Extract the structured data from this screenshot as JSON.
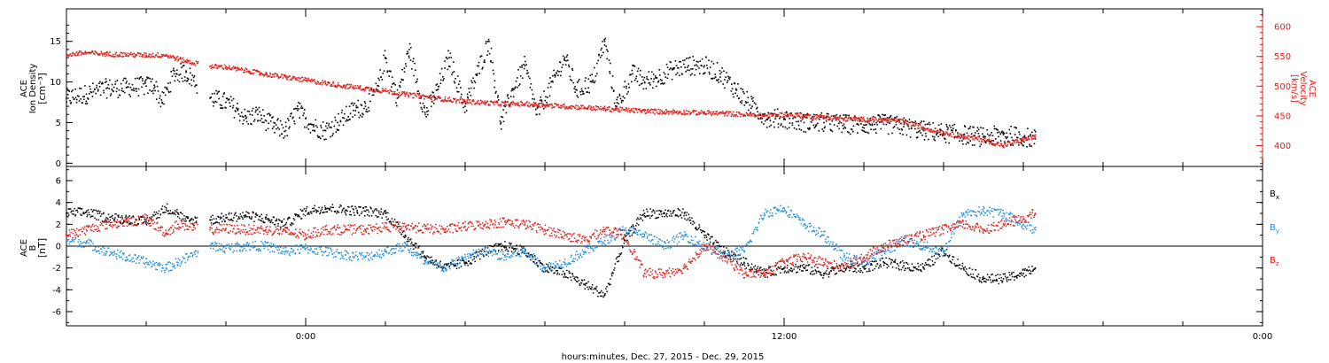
{
  "chart_data": [
    {
      "type": "scatter",
      "panel": "top",
      "ylabel_left": [
        "ACE",
        "Ion Density",
        "[cm⁻³]"
      ],
      "ylabel_right": [
        "ACE",
        "Velocity",
        "[km/s]"
      ],
      "ylim_left": [
        -0.4,
        19
      ],
      "yticks_left": [
        0,
        5,
        10,
        15
      ],
      "ylim_right": [
        365,
        630
      ],
      "yticks_right": [
        400,
        450,
        500,
        550,
        600
      ],
      "right_axis_color": "#e0201b",
      "series": [
        {
          "color": "#000000",
          "axis": "left",
          "x": [
            -6.0,
            -5.5,
            -5.0,
            -4.5,
            -4.0,
            -3.8,
            -3.6,
            -3.3,
            -3.0,
            -2.4,
            -2.0,
            -1.7,
            -1.5,
            -1.2,
            -0.8,
            -0.5,
            -0.2,
            0.2,
            0.5,
            0.8,
            1.2,
            1.5,
            1.8,
            2.0,
            2.3,
            2.6,
            3.0,
            3.3,
            3.6,
            4.0,
            4.3,
            4.6,
            4.9,
            5.2,
            5.5,
            5.8,
            6.2,
            6.5,
            6.8,
            7.2,
            7.5,
            7.8,
            8.2,
            8.5,
            8.8,
            9.2,
            9.6,
            10.0,
            10.4,
            10.8,
            11.2,
            11.6,
            12.0,
            12.5,
            13.0,
            13.5,
            14.0,
            14.5,
            15.0,
            15.5,
            16.0,
            16.5,
            17.0,
            17.5,
            18.0,
            18.3
          ],
          "y": [
            8,
            8.5,
            9.2,
            9.3,
            9.5,
            9.6,
            7.5,
            11,
            11.2,
            8,
            7.5,
            6.5,
            5.5,
            6,
            4.5,
            4,
            6.5,
            4.5,
            4,
            5,
            6.5,
            7,
            9,
            13,
            8,
            14,
            6,
            9,
            13,
            7,
            11,
            15,
            5,
            9,
            12,
            6,
            10,
            13,
            9,
            10,
            15,
            7,
            11,
            10,
            10.5,
            11.5,
            12,
            12,
            11,
            9,
            7,
            5.5,
            5.5,
            5,
            5,
            4.8,
            4.7,
            4.8,
            4.5,
            4,
            3.7,
            3.5,
            3.2,
            3.5,
            3.2,
            3.0
          ]
        },
        {
          "color": "#e0201b",
          "axis": "right",
          "x": [
            -6.0,
            -5.5,
            -5.0,
            -4.5,
            -4.0,
            -3.5,
            -3.0,
            -2.4,
            -2.0,
            -1.7,
            -1.4,
            -1.0,
            -0.5,
            0.0,
            0.5,
            1.0,
            1.5,
            2.0,
            2.5,
            3.0,
            3.5,
            4.0,
            4.5,
            5.0,
            5.5,
            6.0,
            6.5,
            7.0,
            7.5,
            8.0,
            8.5,
            9.0,
            9.5,
            10.0,
            10.5,
            11.0,
            11.5,
            12.0,
            12.5,
            13.0,
            13.5,
            14.0,
            14.5,
            15.0,
            15.5,
            16.0,
            16.5,
            17.0,
            17.5,
            18.0,
            18.3
          ],
          "y": [
            553,
            556,
            554,
            553,
            552,
            552,
            542,
            533,
            532,
            528,
            525,
            520,
            515,
            510,
            505,
            500,
            496,
            492,
            486,
            482,
            478,
            474,
            472,
            470,
            470,
            468,
            466,
            464,
            462,
            460,
            458,
            457,
            456,
            455,
            454,
            452,
            450,
            452,
            450,
            448,
            445,
            444,
            443,
            440,
            430,
            422,
            415,
            410,
            400,
            410,
            415
          ]
        }
      ]
    },
    {
      "type": "scatter",
      "panel": "bottom",
      "ylabel_left": [
        "ACE",
        "B",
        "[nT]"
      ],
      "ylim": [
        -7.3,
        7.3
      ],
      "yticks": [
        -6,
        -4,
        -2,
        0,
        2,
        4,
        6
      ],
      "zero_line": true,
      "x_axis": {
        "title": "hours:minutes, Dec. 27, 2015 - Dec. 29, 2015",
        "xlim": [
          -6.0,
          24.0
        ],
        "major_ticks": [
          0,
          12,
          24
        ],
        "major_tick_labels": [
          "0:00",
          "12:00",
          "0:00"
        ],
        "minor_tick_step": 2
      },
      "series": [
        {
          "name": "B",
          "subscript": "x",
          "color": "#000000",
          "x": [
            -6.0,
            -5.5,
            -5.0,
            -4.5,
            -4.0,
            -3.5,
            -3.2,
            -3.0,
            -2.4,
            -2.0,
            -1.5,
            -1.0,
            -0.5,
            0.0,
            0.5,
            1.0,
            1.5,
            2.0,
            2.5,
            3.0,
            3.5,
            4.0,
            4.5,
            5.0,
            5.5,
            6.0,
            6.5,
            7.0,
            7.5,
            8.0,
            8.5,
            9.0,
            9.5,
            10.0,
            10.5,
            11.0,
            11.5,
            12.0,
            12.5,
            13.0,
            13.5,
            14.0,
            14.5,
            15.0,
            15.5,
            16.0,
            16.5,
            17.0,
            17.5,
            18.0,
            18.3
          ],
          "y": [
            3,
            3.1,
            2.6,
            2.5,
            2.2,
            3.5,
            3.0,
            2.3,
            2.4,
            2.6,
            2.8,
            2.5,
            2.0,
            3.2,
            3.5,
            3.3,
            3.2,
            3.0,
            1.0,
            -1.0,
            -2.0,
            -1.5,
            -0.5,
            0.0,
            -0.5,
            -2.0,
            -2.5,
            -3.5,
            -4.5,
            0.5,
            3.0,
            3.0,
            3.0,
            1.0,
            -0.5,
            -1.5,
            -2.5,
            -2.0,
            -2.0,
            -2.5,
            -2.0,
            -2.0,
            -1.5,
            -1.8,
            -2.0,
            -0.5,
            -2.0,
            -3.0,
            -3.0,
            -2.5,
            -2.0
          ]
        },
        {
          "name": "B",
          "subscript": "y",
          "color": "#1f8fe0",
          "x": [
            -6.0,
            -5.5,
            -5.0,
            -4.5,
            -4.0,
            -3.5,
            -3.2,
            -2.4,
            -2.0,
            -1.5,
            -1.0,
            -0.5,
            0.0,
            0.5,
            1.0,
            1.5,
            2.0,
            2.5,
            3.0,
            3.5,
            4.0,
            4.5,
            5.0,
            5.5,
            6.0,
            6.5,
            7.0,
            7.5,
            8.0,
            8.5,
            9.0,
            9.5,
            10.0,
            10.5,
            11.0,
            11.5,
            12.0,
            12.5,
            13.0,
            13.5,
            14.0,
            14.5,
            15.0,
            15.5,
            16.0,
            16.5,
            17.0,
            17.5,
            18.0,
            18.3
          ],
          "y": [
            0.5,
            0.3,
            -0.5,
            -1.0,
            -1.5,
            -2.0,
            -1.5,
            0.0,
            -0.2,
            0.0,
            0.0,
            -0.5,
            -0.2,
            -0.5,
            -0.8,
            -1.0,
            -0.5,
            0.0,
            -1.5,
            -2.0,
            -1.0,
            -0.5,
            -1.0,
            -0.5,
            -2.0,
            -1.5,
            -0.5,
            0.5,
            1.5,
            1.0,
            0.0,
            1.0,
            0.0,
            -0.8,
            -0.5,
            3.0,
            3.5,
            2.0,
            1.0,
            -1.0,
            -1.5,
            -0.5,
            0.5,
            0.0,
            -0.5,
            3.0,
            3.2,
            3.0,
            2.0,
            1.5
          ]
        },
        {
          "name": "B",
          "subscript": "z",
          "color": "#e0201b",
          "x": [
            -6.0,
            -5.5,
            -5.0,
            -4.5,
            -4.0,
            -3.5,
            -3.2,
            -2.4,
            -2.0,
            -1.5,
            -1.0,
            -0.5,
            0.0,
            0.5,
            1.0,
            1.5,
            2.0,
            2.5,
            3.0,
            3.5,
            4.0,
            4.5,
            5.0,
            5.5,
            6.0,
            6.5,
            7.0,
            7.5,
            8.0,
            8.5,
            9.0,
            9.5,
            10.0,
            10.5,
            11.0,
            11.5,
            12.0,
            12.5,
            13.0,
            13.5,
            14.0,
            14.5,
            15.0,
            15.5,
            16.0,
            16.5,
            17.0,
            17.5,
            18.0,
            18.3
          ],
          "y": [
            1.0,
            1.5,
            2.0,
            2.2,
            2.5,
            1.2,
            2.0,
            1.5,
            1.6,
            1.5,
            1.5,
            1.3,
            1.0,
            1.5,
            1.5,
            1.5,
            1.7,
            1.8,
            1.6,
            1.5,
            1.8,
            2.0,
            2.2,
            2.0,
            1.5,
            1.0,
            0.5,
            1.5,
            1.0,
            -2.5,
            -2.5,
            -2.0,
            0.0,
            -1.0,
            -2.5,
            -2.5,
            -1.5,
            -1.0,
            -1.5,
            -2.0,
            -1.0,
            0.0,
            0.5,
            1.0,
            1.5,
            2.0,
            1.5,
            2.0,
            2.5,
            3.0
          ]
        }
      ]
    }
  ]
}
